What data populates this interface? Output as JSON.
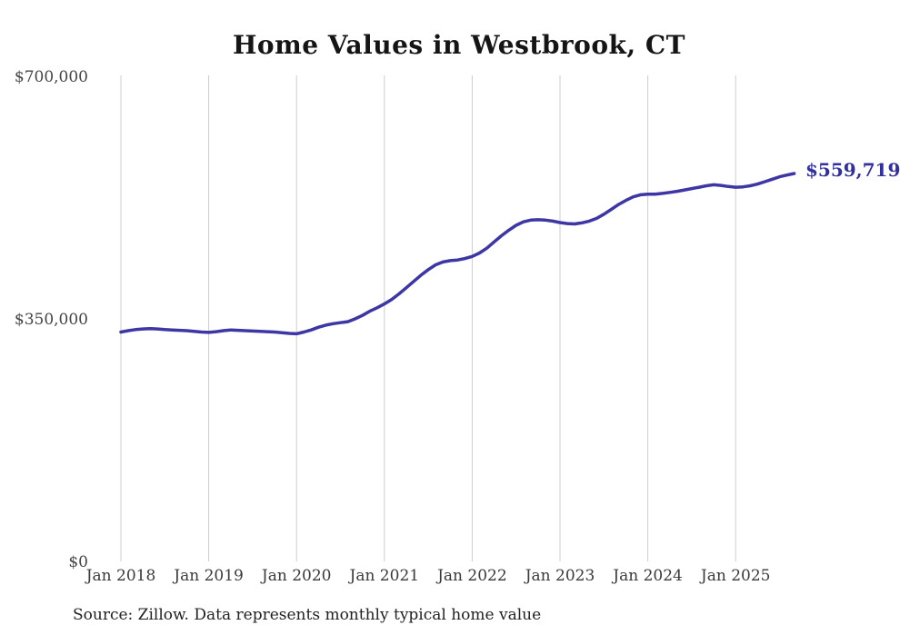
{
  "chart_data": {
    "type": "line",
    "title": "Home Values in Westbrook, CT",
    "end_label": "$559,719",
    "end_value": 559719,
    "line_color": "#3d36a4",
    "end_label_color": "#32309e",
    "grid_color": "#cccccc",
    "grid": "vertical-only",
    "legend_position": "none",
    "ylim": [
      0,
      700000
    ],
    "yticks": [
      {
        "label": "$700,000",
        "value": 700000
      },
      {
        "label": "$350,000",
        "value": 350000
      },
      {
        "label": "$0",
        "value": 0
      }
    ],
    "x_start": "2018-01",
    "x_end": "2025-09",
    "xticks": [
      "Jan 2018",
      "Jan 2019",
      "Jan 2020",
      "Jan 2021",
      "Jan 2022",
      "Jan 2023",
      "Jan 2024",
      "Jan 2025"
    ],
    "xtick_month_indices": [
      0,
      12,
      24,
      36,
      48,
      60,
      72,
      84
    ],
    "series_name": "Typical home value (monthly)",
    "values": [
      331000,
      333000,
      334500,
      335500,
      336000,
      335500,
      334500,
      334000,
      333500,
      333000,
      332000,
      331000,
      330500,
      331500,
      333000,
      334000,
      333500,
      333000,
      332500,
      332000,
      331500,
      331000,
      330000,
      329000,
      328500,
      331000,
      334000,
      338000,
      341000,
      343000,
      344500,
      346000,
      350000,
      355000,
      361000,
      366000,
      371500,
      378000,
      386000,
      395000,
      404000,
      413000,
      421000,
      428000,
      432000,
      434000,
      435000,
      437000,
      440000,
      445000,
      452000,
      461000,
      470000,
      478000,
      485000,
      490000,
      492500,
      493000,
      492500,
      491000,
      489000,
      487500,
      487000,
      488500,
      491000,
      495000,
      501000,
      508000,
      515000,
      521000,
      526000,
      529000,
      530000,
      530000,
      531000,
      532500,
      534000,
      536000,
      538000,
      540000,
      542000,
      543500,
      542500,
      541000,
      540000,
      540500,
      542000,
      544500,
      548000,
      551500,
      555000,
      557500,
      559719
    ]
  },
  "footer": {
    "source": "Source: Zillow. Data represents monthly typical home value"
  }
}
